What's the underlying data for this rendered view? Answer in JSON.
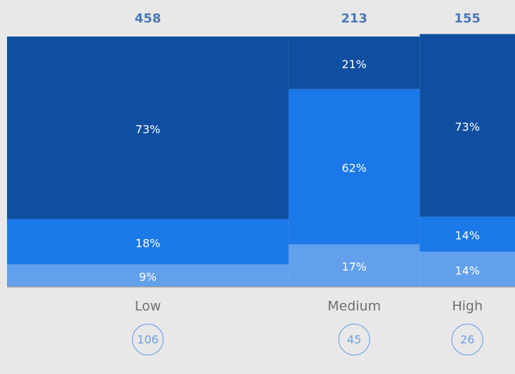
{
  "chart_data": {
    "type": "marimekko",
    "categories": [
      "Low",
      "Medium",
      "High"
    ],
    "totals": [
      458,
      213,
      155
    ],
    "counts": [
      106,
      45,
      26
    ],
    "ylim": [
      0,
      100
    ],
    "series": [
      {
        "color": "#62a0ec",
        "values": [
          9,
          17,
          14
        ],
        "value_labels": [
          "9%",
          "17%",
          "14%"
        ]
      },
      {
        "color": "#1a78e8",
        "values": [
          18,
          62,
          14
        ],
        "value_labels": [
          "18%",
          "62%",
          "14%"
        ]
      },
      {
        "color": "#0f4fa0",
        "values": [
          73,
          21,
          73
        ],
        "value_labels": [
          "73%",
          "21%",
          "73%"
        ]
      }
    ]
  }
}
